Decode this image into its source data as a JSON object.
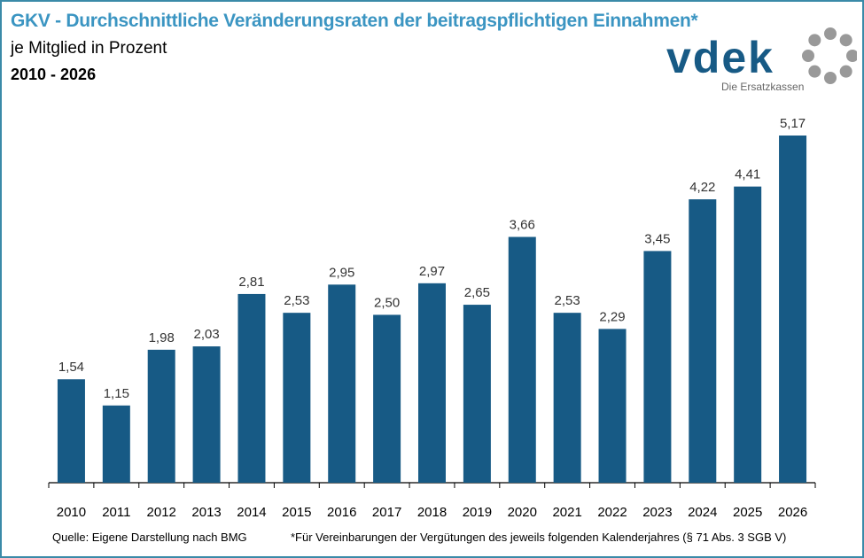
{
  "title": "GKV - Durchschnittliche Veränderungsraten der beitragspflichtigen Einnahmen*",
  "subtitle": "je Mitglied in Prozent",
  "period": "2010 - 2026",
  "logo": {
    "text": "vdek",
    "tagline": "Die Ersatzkassen"
  },
  "source": "Quelle: Eigene Darstellung nach BMG",
  "footnote": "*Für Vereinbarungen der Vergütungen des jeweils folgenden Kalenderjahres (§ 71 Abs. 3 SGB V)",
  "colors": {
    "bar": "#175a85",
    "title": "#3b95c2",
    "frame": "#3a8aa8"
  },
  "chart_data": {
    "type": "bar",
    "categories": [
      "2010",
      "2011",
      "2012",
      "2013",
      "2014",
      "2015",
      "2016",
      "2017",
      "2018",
      "2019",
      "2020",
      "2021",
      "2022",
      "2023",
      "2024",
      "2025",
      "2026"
    ],
    "values": [
      1.54,
      1.15,
      1.98,
      2.03,
      2.81,
      2.53,
      2.95,
      2.5,
      2.97,
      2.65,
      3.66,
      2.53,
      2.29,
      3.45,
      4.22,
      4.41,
      5.17
    ],
    "data_labels": [
      "1,54",
      "1,15",
      "1,98",
      "2,03",
      "2,81",
      "2,53",
      "2,95",
      "2,50",
      "2,97",
      "2,65",
      "3,66",
      "2,53",
      "2,29",
      "3,45",
      "4,22",
      "4,41",
      "5,17"
    ],
    "ylim": [
      0,
      5.17
    ],
    "grid": false,
    "y_axis_visible": false
  }
}
